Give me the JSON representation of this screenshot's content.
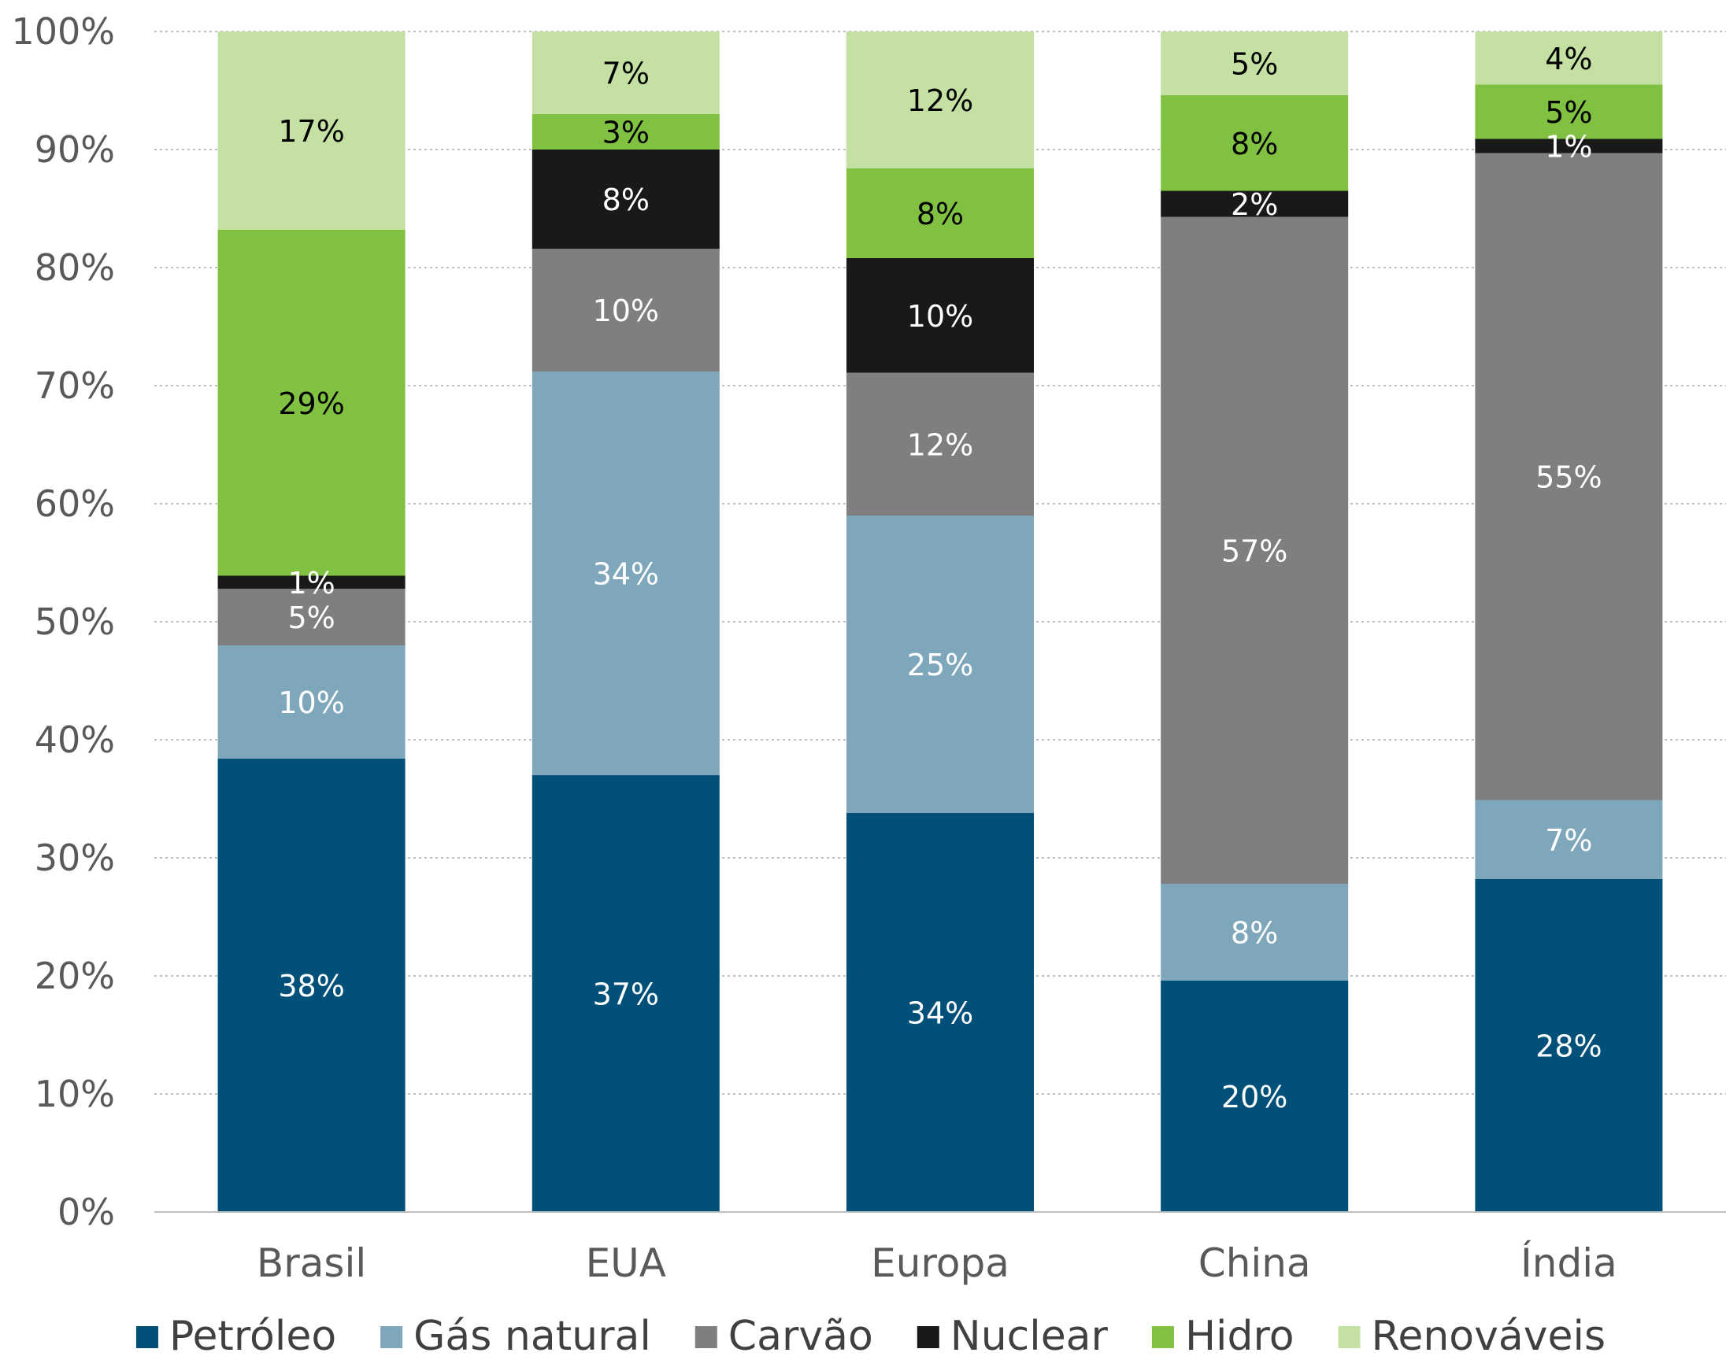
{
  "chart_data": {
    "type": "bar",
    "stacked": true,
    "categories": [
      "Brasil",
      "EUA",
      "Europa",
      "China",
      "Índia"
    ],
    "series": [
      {
        "name": "Petróleo",
        "color": "#005079",
        "label_color": "#ffffff",
        "values": [
          38.4,
          37.0,
          33.8,
          19.6,
          28.2
        ],
        "labels": [
          "38%",
          "37%",
          "34%",
          "20%",
          "28%"
        ]
      },
      {
        "name": "Gás natural",
        "color": "#7fa7bc",
        "label_color": "#ffffff",
        "values": [
          9.6,
          34.2,
          25.2,
          8.2,
          6.7
        ],
        "labels": [
          "10%",
          "34%",
          "25%",
          "8%",
          "7%"
        ]
      },
      {
        "name": "Carvão",
        "color": "#7f7f7f",
        "label_color": "#ffffff",
        "values": [
          4.8,
          10.4,
          12.1,
          56.5,
          54.8
        ],
        "labels": [
          "5%",
          "10%",
          "12%",
          "57%",
          "55%"
        ]
      },
      {
        "name": "Nuclear",
        "color": "#191919",
        "label_color": "#ffffff",
        "values": [
          1.1,
          8.4,
          9.7,
          2.2,
          1.2
        ],
        "labels": [
          "1%",
          "8%",
          "10%",
          "2%",
          "1%"
        ]
      },
      {
        "name": "Hidro",
        "color": "#80c141",
        "label_color": "#000000",
        "values": [
          29.3,
          3.0,
          7.6,
          8.1,
          4.6
        ],
        "labels": [
          "29%",
          "3%",
          "8%",
          "8%",
          "5%"
        ]
      },
      {
        "name": "Renováveis",
        "color": "#c4e1a3",
        "label_color": "#000000",
        "values": [
          16.8,
          7.0,
          11.6,
          5.4,
          4.5
        ],
        "labels": [
          "17%",
          "7%",
          "12%",
          "5%",
          "4%"
        ]
      }
    ],
    "yticks": [
      "0%",
      "10%",
      "20%",
      "30%",
      "40%",
      "50%",
      "60%",
      "70%",
      "80%",
      "90%",
      "100%"
    ],
    "ylim": [
      0,
      100
    ],
    "grid": true,
    "legend": "bottom",
    "title": "",
    "xlabel": "",
    "ylabel": ""
  }
}
